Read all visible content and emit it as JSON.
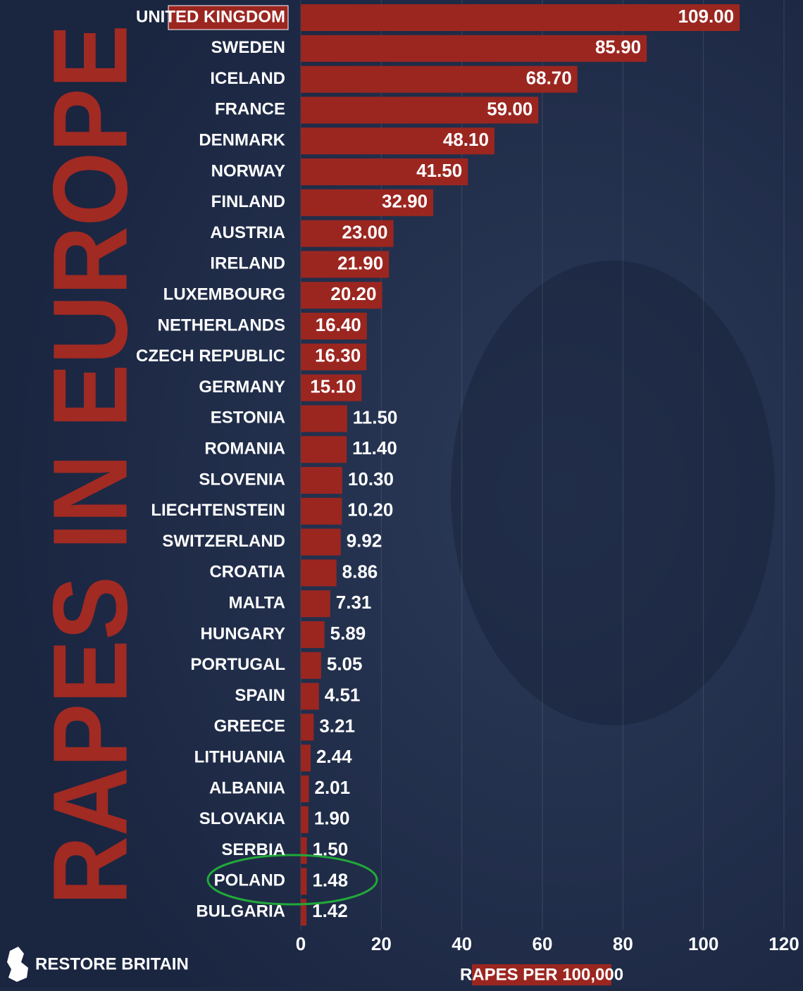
{
  "chart_data": {
    "type": "barh",
    "title": "RAPES IN EUROPE",
    "x_label": "RAPES PER 100,000",
    "source": "RESTORE BRITAIN",
    "categories": [
      "UNITED KINGDOM",
      "SWEDEN",
      "ICELAND",
      "FRANCE",
      "DENMARK",
      "NORWAY",
      "FINLAND",
      "AUSTRIA",
      "IRELAND",
      "LUXEMBOURG",
      "NETHERLANDS",
      "CZECH REPUBLIC",
      "GERMANY",
      "ESTONIA",
      "ROMANIA",
      "SLOVENIA",
      "LIECHTENSTEIN",
      "SWITZERLAND",
      "CROATIA",
      "MALTA",
      "HUNGARY",
      "PORTUGAL",
      "SPAIN",
      "GREECE",
      "LITHUANIA",
      "ALBANIA",
      "SLOVAKIA",
      "SERBIA",
      "POLAND",
      "BULGARIA"
    ],
    "values": [
      109,
      85.9,
      68.7,
      59,
      48.1,
      41.5,
      32.9,
      23,
      21.9,
      20.2,
      16.4,
      16.3,
      15.1,
      11.5,
      11.4,
      10.3,
      10.2,
      9.92,
      8.86,
      7.31,
      5.89,
      5.05,
      4.51,
      3.21,
      2.44,
      2.01,
      1.9,
      1.5,
      1.48,
      1.42
    ],
    "value_labels": [
      "109.00",
      "85.90",
      "68.70",
      "59.00",
      "48.10",
      "41.50",
      "32.90",
      "23.00",
      "21.90",
      "20.20",
      "16.40",
      "16.30",
      "15.10",
      "11.50",
      "11.40",
      "10.30",
      "10.20",
      "9.92",
      "8.86",
      "7.31",
      "5.89",
      "5.05",
      "4.51",
      "3.21",
      "2.44",
      "2.01",
      "1.90",
      "1.50",
      "1.48",
      "1.42"
    ],
    "color": "#9b2620",
    "xlim": [
      0,
      120
    ],
    "xticks": [
      0,
      20,
      40,
      60,
      80,
      100,
      120
    ],
    "grid": true
  }
}
